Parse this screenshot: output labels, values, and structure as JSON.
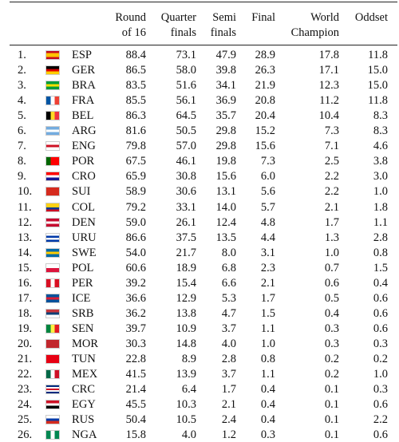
{
  "table": {
    "header": [
      [
        "Round",
        "of 16"
      ],
      [
        "Quarter",
        "finals"
      ],
      [
        "Semi",
        "finals"
      ],
      [
        "Final"
      ],
      [
        "World",
        "Champion"
      ],
      [
        "Oddset"
      ]
    ],
    "rows": [
      [
        "1.",
        "ESP",
        "88.4",
        "73.1",
        "47.9",
        "28.9",
        "17.8",
        "11.8"
      ],
      [
        "2.",
        "GER",
        "86.5",
        "58.0",
        "39.8",
        "26.3",
        "17.1",
        "15.0"
      ],
      [
        "3.",
        "BRA",
        "83.5",
        "51.6",
        "34.1",
        "21.9",
        "12.3",
        "15.0"
      ],
      [
        "4.",
        "FRA",
        "85.5",
        "56.1",
        "36.9",
        "20.8",
        "11.2",
        "11.8"
      ],
      [
        "5.",
        "BEL",
        "86.3",
        "64.5",
        "35.7",
        "20.4",
        "10.4",
        "8.3"
      ],
      [
        "6.",
        "ARG",
        "81.6",
        "50.5",
        "29.8",
        "15.2",
        "7.3",
        "8.3"
      ],
      [
        "7.",
        "ENG",
        "79.8",
        "57.0",
        "29.8",
        "15.6",
        "7.1",
        "4.6"
      ],
      [
        "8.",
        "POR",
        "67.5",
        "46.1",
        "19.8",
        "7.3",
        "2.5",
        "3.8"
      ],
      [
        "9.",
        "CRO",
        "65.9",
        "30.8",
        "15.6",
        "6.0",
        "2.2",
        "3.0"
      ],
      [
        "10.",
        "SUI",
        "58.9",
        "30.6",
        "13.1",
        "5.6",
        "2.2",
        "1.0"
      ],
      [
        "11.",
        "COL",
        "79.2",
        "33.1",
        "14.0",
        "5.7",
        "2.1",
        "1.8"
      ],
      [
        "12.",
        "DEN",
        "59.0",
        "26.1",
        "12.4",
        "4.8",
        "1.7",
        "1.1"
      ],
      [
        "13.",
        "URU",
        "86.6",
        "37.5",
        "13.5",
        "4.4",
        "1.3",
        "2.8"
      ],
      [
        "14.",
        "SWE",
        "54.0",
        "21.7",
        "8.0",
        "3.1",
        "1.0",
        "0.8"
      ],
      [
        "15.",
        "POL",
        "60.6",
        "18.9",
        "6.8",
        "2.3",
        "0.7",
        "1.5"
      ],
      [
        "16.",
        "PER",
        "39.2",
        "15.4",
        "6.6",
        "2.1",
        "0.6",
        "0.4"
      ],
      [
        "17.",
        "ICE",
        "36.6",
        "12.9",
        "5.3",
        "1.7",
        "0.5",
        "0.6"
      ],
      [
        "18.",
        "SRB",
        "36.2",
        "13.8",
        "4.7",
        "1.5",
        "0.4",
        "0.6"
      ],
      [
        "19.",
        "SEN",
        "39.7",
        "10.9",
        "3.7",
        "1.1",
        "0.3",
        "0.6"
      ],
      [
        "20.",
        "MOR",
        "30.3",
        "14.8",
        "4.0",
        "1.0",
        "0.3",
        "0.3"
      ],
      [
        "21.",
        "TUN",
        "22.8",
        "8.9",
        "2.8",
        "0.8",
        "0.2",
        "0.2"
      ],
      [
        "22.",
        "MEX",
        "41.5",
        "13.9",
        "3.7",
        "1.1",
        "0.2",
        "1.0"
      ],
      [
        "23.",
        "CRC",
        "21.4",
        "6.4",
        "1.7",
        "0.4",
        "0.1",
        "0.3"
      ],
      [
        "24.",
        "EGY",
        "45.5",
        "10.3",
        "2.1",
        "0.4",
        "0.1",
        "0.6"
      ],
      [
        "25.",
        "RUS",
        "50.4",
        "10.5",
        "2.4",
        "0.4",
        "0.1",
        "2.2"
      ],
      [
        "26.",
        "NGA",
        "15.8",
        "4.0",
        "1.2",
        "0.3",
        "0.1",
        "0.6"
      ]
    ]
  }
}
